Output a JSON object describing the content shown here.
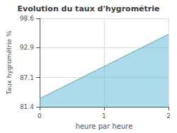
{
  "chart_data": {
    "type": "area",
    "title": "Evolution du taux d'hygrométrie",
    "xlabel": "heure par heure",
    "ylabel": "Taux hygrométrie %",
    "x": [
      0,
      2
    ],
    "values": [
      83.0,
      95.5
    ],
    "color": "#5bb8d4",
    "xlim": [
      0,
      2
    ],
    "xticks": [
      0,
      1,
      2
    ],
    "ylim": [
      81.4,
      98.6
    ],
    "yticks": [
      81.4,
      87.1,
      92.9,
      98.6
    ],
    "grid": true
  }
}
